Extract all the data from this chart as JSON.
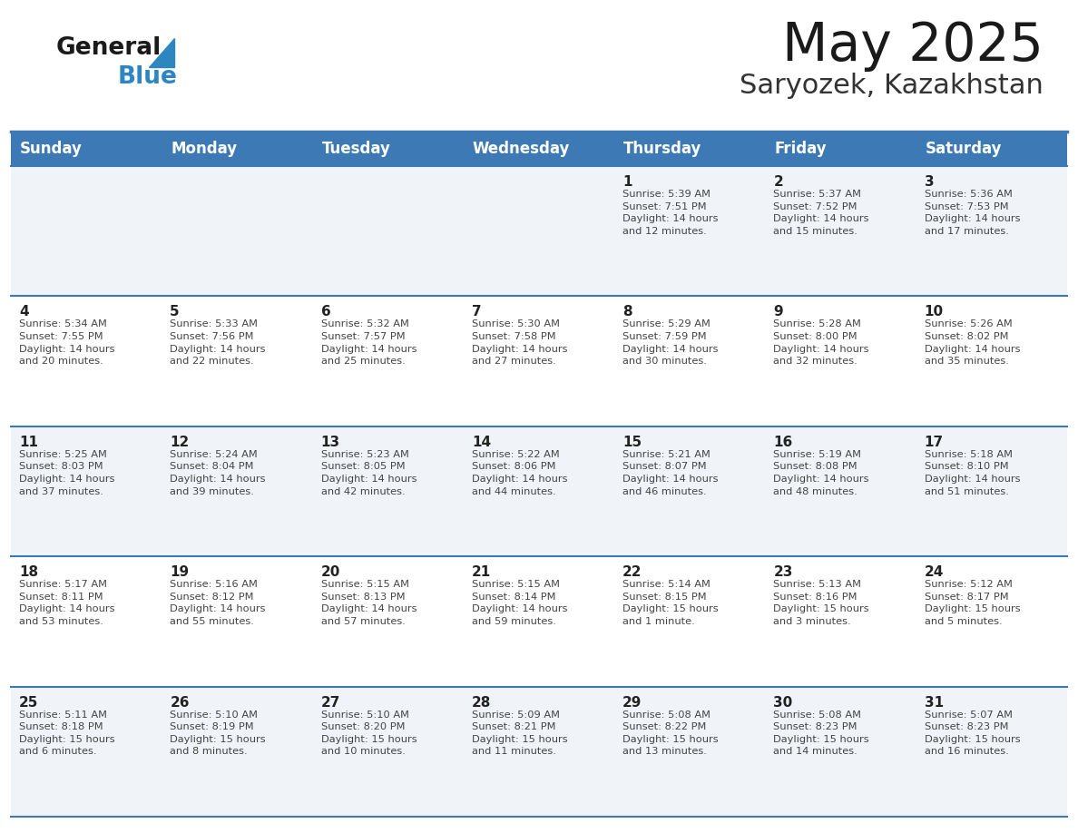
{
  "title": "May 2025",
  "subtitle": "Saryozek, Kazakhstan",
  "days_of_week": [
    "Sunday",
    "Monday",
    "Tuesday",
    "Wednesday",
    "Thursday",
    "Friday",
    "Saturday"
  ],
  "header_bg": "#3d7ab5",
  "header_text_color": "#ffffff",
  "row_bg_odd": "#f0f4f8",
  "row_bg_even": "#ffffff",
  "cell_text_color": "#444444",
  "day_num_color": "#222222",
  "line_color": "#3d7ab5",
  "title_color": "#1a1a1a",
  "subtitle_color": "#333333",
  "logo_general_color": "#1a1a1a",
  "logo_blue_color": "#2e86c1",
  "weeks": [
    [
      {
        "day": "",
        "info": ""
      },
      {
        "day": "",
        "info": ""
      },
      {
        "day": "",
        "info": ""
      },
      {
        "day": "",
        "info": ""
      },
      {
        "day": "1",
        "info": "Sunrise: 5:39 AM\nSunset: 7:51 PM\nDaylight: 14 hours\nand 12 minutes."
      },
      {
        "day": "2",
        "info": "Sunrise: 5:37 AM\nSunset: 7:52 PM\nDaylight: 14 hours\nand 15 minutes."
      },
      {
        "day": "3",
        "info": "Sunrise: 5:36 AM\nSunset: 7:53 PM\nDaylight: 14 hours\nand 17 minutes."
      }
    ],
    [
      {
        "day": "4",
        "info": "Sunrise: 5:34 AM\nSunset: 7:55 PM\nDaylight: 14 hours\nand 20 minutes."
      },
      {
        "day": "5",
        "info": "Sunrise: 5:33 AM\nSunset: 7:56 PM\nDaylight: 14 hours\nand 22 minutes."
      },
      {
        "day": "6",
        "info": "Sunrise: 5:32 AM\nSunset: 7:57 PM\nDaylight: 14 hours\nand 25 minutes."
      },
      {
        "day": "7",
        "info": "Sunrise: 5:30 AM\nSunset: 7:58 PM\nDaylight: 14 hours\nand 27 minutes."
      },
      {
        "day": "8",
        "info": "Sunrise: 5:29 AM\nSunset: 7:59 PM\nDaylight: 14 hours\nand 30 minutes."
      },
      {
        "day": "9",
        "info": "Sunrise: 5:28 AM\nSunset: 8:00 PM\nDaylight: 14 hours\nand 32 minutes."
      },
      {
        "day": "10",
        "info": "Sunrise: 5:26 AM\nSunset: 8:02 PM\nDaylight: 14 hours\nand 35 minutes."
      }
    ],
    [
      {
        "day": "11",
        "info": "Sunrise: 5:25 AM\nSunset: 8:03 PM\nDaylight: 14 hours\nand 37 minutes."
      },
      {
        "day": "12",
        "info": "Sunrise: 5:24 AM\nSunset: 8:04 PM\nDaylight: 14 hours\nand 39 minutes."
      },
      {
        "day": "13",
        "info": "Sunrise: 5:23 AM\nSunset: 8:05 PM\nDaylight: 14 hours\nand 42 minutes."
      },
      {
        "day": "14",
        "info": "Sunrise: 5:22 AM\nSunset: 8:06 PM\nDaylight: 14 hours\nand 44 minutes."
      },
      {
        "day": "15",
        "info": "Sunrise: 5:21 AM\nSunset: 8:07 PM\nDaylight: 14 hours\nand 46 minutes."
      },
      {
        "day": "16",
        "info": "Sunrise: 5:19 AM\nSunset: 8:08 PM\nDaylight: 14 hours\nand 48 minutes."
      },
      {
        "day": "17",
        "info": "Sunrise: 5:18 AM\nSunset: 8:10 PM\nDaylight: 14 hours\nand 51 minutes."
      }
    ],
    [
      {
        "day": "18",
        "info": "Sunrise: 5:17 AM\nSunset: 8:11 PM\nDaylight: 14 hours\nand 53 minutes."
      },
      {
        "day": "19",
        "info": "Sunrise: 5:16 AM\nSunset: 8:12 PM\nDaylight: 14 hours\nand 55 minutes."
      },
      {
        "day": "20",
        "info": "Sunrise: 5:15 AM\nSunset: 8:13 PM\nDaylight: 14 hours\nand 57 minutes."
      },
      {
        "day": "21",
        "info": "Sunrise: 5:15 AM\nSunset: 8:14 PM\nDaylight: 14 hours\nand 59 minutes."
      },
      {
        "day": "22",
        "info": "Sunrise: 5:14 AM\nSunset: 8:15 PM\nDaylight: 15 hours\nand 1 minute."
      },
      {
        "day": "23",
        "info": "Sunrise: 5:13 AM\nSunset: 8:16 PM\nDaylight: 15 hours\nand 3 minutes."
      },
      {
        "day": "24",
        "info": "Sunrise: 5:12 AM\nSunset: 8:17 PM\nDaylight: 15 hours\nand 5 minutes."
      }
    ],
    [
      {
        "day": "25",
        "info": "Sunrise: 5:11 AM\nSunset: 8:18 PM\nDaylight: 15 hours\nand 6 minutes."
      },
      {
        "day": "26",
        "info": "Sunrise: 5:10 AM\nSunset: 8:19 PM\nDaylight: 15 hours\nand 8 minutes."
      },
      {
        "day": "27",
        "info": "Sunrise: 5:10 AM\nSunset: 8:20 PM\nDaylight: 15 hours\nand 10 minutes."
      },
      {
        "day": "28",
        "info": "Sunrise: 5:09 AM\nSunset: 8:21 PM\nDaylight: 15 hours\nand 11 minutes."
      },
      {
        "day": "29",
        "info": "Sunrise: 5:08 AM\nSunset: 8:22 PM\nDaylight: 15 hours\nand 13 minutes."
      },
      {
        "day": "30",
        "info": "Sunrise: 5:08 AM\nSunset: 8:23 PM\nDaylight: 15 hours\nand 14 minutes."
      },
      {
        "day": "31",
        "info": "Sunrise: 5:07 AM\nSunset: 8:23 PM\nDaylight: 15 hours\nand 16 minutes."
      }
    ]
  ]
}
